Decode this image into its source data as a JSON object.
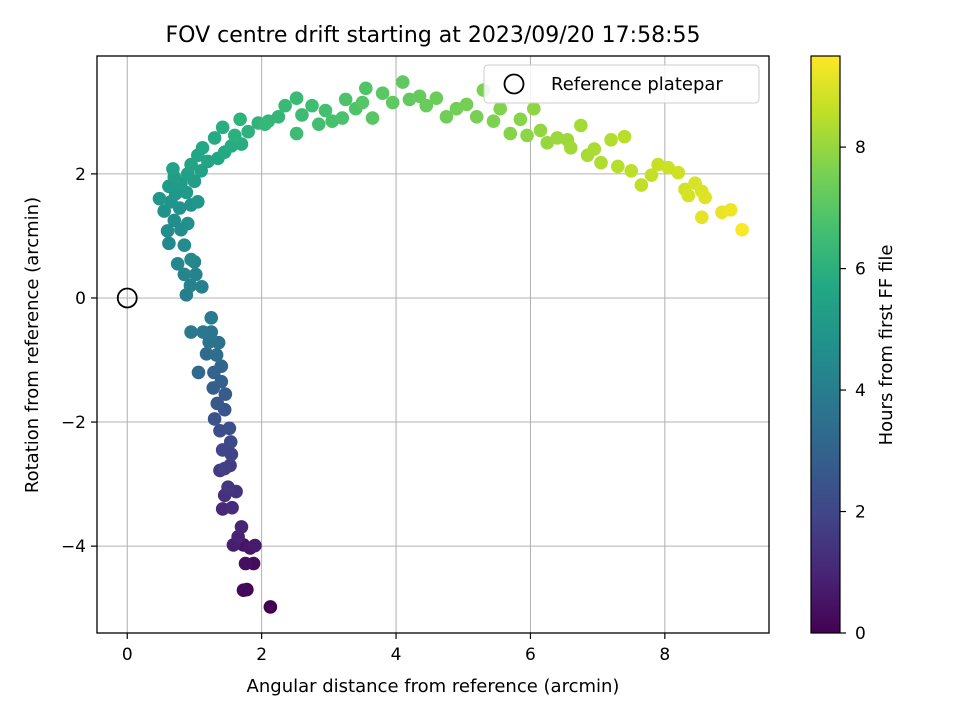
{
  "chart_data": {
    "type": "scatter",
    "title": "FOV centre drift starting at 2023/09/20 17:58:55",
    "xlabel": "Angular distance from reference (arcmin)",
    "ylabel": "Rotation from reference (arcmin)",
    "xlim": [
      -0.45,
      9.55
    ],
    "ylim": [
      -5.4,
      3.9
    ],
    "x_ticks": [
      0,
      2,
      4,
      6,
      8
    ],
    "y_ticks": [
      -4,
      -2,
      0,
      2
    ],
    "x_tick_labels": [
      "0",
      "2",
      "4",
      "6",
      "8"
    ],
    "y_tick_labels": [
      "−4",
      "−2",
      "0",
      "2"
    ],
    "grid": true,
    "legend": {
      "position": "top-right",
      "entries": [
        "Reference platepar"
      ]
    },
    "reference_point": {
      "x": 0,
      "y": 0,
      "label": "Reference platepar"
    },
    "colorbar": {
      "label": "Hours from first FF file",
      "range": [
        0,
        9.5
      ],
      "ticks": [
        0,
        2,
        4,
        6,
        8
      ],
      "tick_labels": [
        "0",
        "2",
        "4",
        "6",
        "8"
      ],
      "colormap": "viridis"
    },
    "series": [
      {
        "color_by": "hours",
        "points": [
          [
            2.13,
            -4.98,
            0.0
          ],
          [
            1.78,
            -4.7,
            0.1
          ],
          [
            1.73,
            -4.71,
            0.2
          ],
          [
            1.88,
            -4.28,
            0.3
          ],
          [
            1.76,
            -4.28,
            0.4
          ],
          [
            1.73,
            -3.98,
            0.5
          ],
          [
            1.83,
            -4.03,
            0.6
          ],
          [
            1.9,
            -3.99,
            0.7
          ],
          [
            1.58,
            -3.98,
            0.8
          ],
          [
            1.65,
            -3.85,
            0.9
          ],
          [
            1.7,
            -3.69,
            1.0
          ],
          [
            1.42,
            -3.4,
            1.1
          ],
          [
            1.56,
            -3.38,
            1.2
          ],
          [
            1.45,
            -3.18,
            1.3
          ],
          [
            1.62,
            -3.12,
            1.4
          ],
          [
            1.5,
            -3.05,
            1.5
          ],
          [
            1.38,
            -2.78,
            1.6
          ],
          [
            1.53,
            -2.7,
            1.7
          ],
          [
            1.45,
            -2.75,
            1.8
          ],
          [
            1.55,
            -2.52,
            1.9
          ],
          [
            1.42,
            -2.45,
            2.0
          ],
          [
            1.54,
            -2.32,
            2.1
          ],
          [
            1.38,
            -2.14,
            2.2
          ],
          [
            1.52,
            -2.1,
            2.3
          ],
          [
            1.3,
            -1.95,
            2.4
          ],
          [
            1.45,
            -1.8,
            2.5
          ],
          [
            1.34,
            -1.7,
            2.6
          ],
          [
            1.46,
            -1.55,
            2.7
          ],
          [
            1.28,
            -1.45,
            2.8
          ],
          [
            1.4,
            -1.35,
            2.9
          ],
          [
            1.29,
            -1.2,
            3.0
          ],
          [
            1.4,
            -1.1,
            3.1
          ],
          [
            1.06,
            -1.2,
            3.2
          ],
          [
            1.18,
            -0.9,
            3.3
          ],
          [
            1.33,
            -0.92,
            3.4
          ],
          [
            1.36,
            -0.72,
            3.5
          ],
          [
            1.22,
            -0.71,
            3.6
          ],
          [
            1.25,
            -0.55,
            3.7
          ],
          [
            1.13,
            -0.55,
            3.8
          ],
          [
            0.95,
            -0.55,
            3.85
          ],
          [
            1.25,
            -0.32,
            3.9
          ],
          [
            0.88,
            0.05,
            4.0
          ],
          [
            1.11,
            0.18,
            4.1
          ],
          [
            0.94,
            0.2,
            4.15
          ],
          [
            1.02,
            0.38,
            4.2
          ],
          [
            0.85,
            0.38,
            4.25
          ],
          [
            1.0,
            0.58,
            4.3
          ],
          [
            0.75,
            0.55,
            4.35
          ],
          [
            0.95,
            0.62,
            4.4
          ],
          [
            0.62,
            0.88,
            4.45
          ],
          [
            0.85,
            0.85,
            4.5
          ],
          [
            0.6,
            1.08,
            4.55
          ],
          [
            0.8,
            1.1,
            4.6
          ],
          [
            0.7,
            1.25,
            4.65
          ],
          [
            0.9,
            1.2,
            4.7
          ],
          [
            0.55,
            1.4,
            4.75
          ],
          [
            0.78,
            1.45,
            4.8
          ],
          [
            0.95,
            1.5,
            4.85
          ],
          [
            0.65,
            1.55,
            4.9
          ],
          [
            1.05,
            1.55,
            4.95
          ],
          [
            0.48,
            1.6,
            5.0
          ],
          [
            0.72,
            1.68,
            5.05
          ],
          [
            0.88,
            1.7,
            5.1
          ],
          [
            0.62,
            1.8,
            5.15
          ],
          [
            0.8,
            1.85,
            5.2
          ],
          [
            1.0,
            1.88,
            5.25
          ],
          [
            0.7,
            1.95,
            5.3
          ],
          [
            0.9,
            2.0,
            5.35
          ],
          [
            1.1,
            2.05,
            5.4
          ],
          [
            0.68,
            2.08,
            5.45
          ],
          [
            0.95,
            2.15,
            5.5
          ],
          [
            1.2,
            2.2,
            5.55
          ],
          [
            1.05,
            2.3,
            5.6
          ],
          [
            1.35,
            2.25,
            5.65
          ],
          [
            1.12,
            2.42,
            5.7
          ],
          [
            1.45,
            2.35,
            5.75
          ],
          [
            1.3,
            2.58,
            5.8
          ],
          [
            1.55,
            2.45,
            5.85
          ],
          [
            1.7,
            2.48,
            5.9
          ],
          [
            1.42,
            2.75,
            5.95
          ],
          [
            1.6,
            2.62,
            6.0
          ],
          [
            1.8,
            2.68,
            6.05
          ],
          [
            1.68,
            2.88,
            6.1
          ],
          [
            1.95,
            2.82,
            6.15
          ],
          [
            2.1,
            2.85,
            6.2
          ],
          [
            2.25,
            2.92,
            6.25
          ],
          [
            2.05,
            2.8,
            6.3
          ],
          [
            2.35,
            3.1,
            6.35
          ],
          [
            2.52,
            3.22,
            6.4
          ],
          [
            2.6,
            2.95,
            6.45
          ],
          [
            2.52,
            2.65,
            6.5
          ],
          [
            2.75,
            3.1,
            6.55
          ],
          [
            2.85,
            2.8,
            6.6
          ],
          [
            2.95,
            3.02,
            6.65
          ],
          [
            3.05,
            2.85,
            6.7
          ],
          [
            3.2,
            2.9,
            6.75
          ],
          [
            3.25,
            3.2,
            6.8
          ],
          [
            3.4,
            3.05,
            6.85
          ],
          [
            3.55,
            3.38,
            6.9
          ],
          [
            3.5,
            3.15,
            6.95
          ],
          [
            3.65,
            2.9,
            7.0
          ],
          [
            3.8,
            3.3,
            7.05
          ],
          [
            3.95,
            3.15,
            7.1
          ],
          [
            4.1,
            3.48,
            7.15
          ],
          [
            4.2,
            3.2,
            7.2
          ],
          [
            4.35,
            3.25,
            7.25
          ],
          [
            4.45,
            3.1,
            7.3
          ],
          [
            4.6,
            3.22,
            7.35
          ],
          [
            4.75,
            2.92,
            7.4
          ],
          [
            4.9,
            3.05,
            7.45
          ],
          [
            5.05,
            3.12,
            7.5
          ],
          [
            5.2,
            2.92,
            7.55
          ],
          [
            5.3,
            3.35,
            7.6
          ],
          [
            5.45,
            2.85,
            7.65
          ],
          [
            5.55,
            3.05,
            7.7
          ],
          [
            5.7,
            2.65,
            7.75
          ],
          [
            5.85,
            2.88,
            7.8
          ],
          [
            5.95,
            2.62,
            7.85
          ],
          [
            6.05,
            3.05,
            7.9
          ],
          [
            6.15,
            2.7,
            7.95
          ],
          [
            6.25,
            2.5,
            8.0
          ],
          [
            6.4,
            2.58,
            8.05
          ],
          [
            6.55,
            2.55,
            8.1
          ],
          [
            6.6,
            2.42,
            8.15
          ],
          [
            6.75,
            2.78,
            8.2
          ],
          [
            6.85,
            2.3,
            8.25
          ],
          [
            6.95,
            2.4,
            8.3
          ],
          [
            7.05,
            2.18,
            8.35
          ],
          [
            7.2,
            2.55,
            8.4
          ],
          [
            7.3,
            2.12,
            8.45
          ],
          [
            7.4,
            2.6,
            8.5
          ],
          [
            7.5,
            2.05,
            8.55
          ],
          [
            7.65,
            1.82,
            8.6
          ],
          [
            7.8,
            1.98,
            8.65
          ],
          [
            7.9,
            2.15,
            8.7
          ],
          [
            8.05,
            2.1,
            8.75
          ],
          [
            8.2,
            2.02,
            8.8
          ],
          [
            8.3,
            1.75,
            8.85
          ],
          [
            8.35,
            1.65,
            8.9
          ],
          [
            8.45,
            1.85,
            8.95
          ],
          [
            8.55,
            1.72,
            9.0
          ],
          [
            8.6,
            1.62,
            9.05
          ],
          [
            8.55,
            1.3,
            9.1
          ],
          [
            8.85,
            1.38,
            9.2
          ],
          [
            8.98,
            1.42,
            9.3
          ],
          [
            9.15,
            1.1,
            9.45
          ]
        ]
      }
    ]
  }
}
